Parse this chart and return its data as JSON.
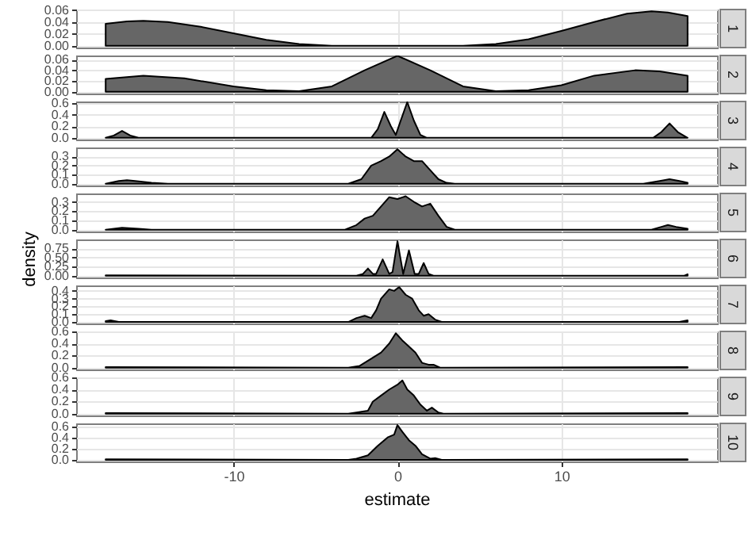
{
  "chart_data": [
    {
      "type": "area",
      "title": "1",
      "x": [
        -17.8,
        -16.5,
        -15.5,
        -14,
        -12,
        -10,
        -8,
        -6,
        -4,
        -2,
        0,
        2,
        4,
        6,
        8,
        10,
        12,
        14,
        15.5,
        16.5,
        17.7
      ],
      "series": [
        {
          "color": "#666666",
          "values": [
            0.037,
            0.041,
            0.042,
            0.04,
            0.032,
            0.021,
            0.01,
            0.003,
            0,
            0,
            0,
            0,
            0,
            0.003,
            0.011,
            0.025,
            0.04,
            0.054,
            0.058,
            0.056,
            0.05
          ]
        }
      ],
      "xlim": [
        -19.6,
        19.5
      ],
      "xticks": [
        -10,
        0,
        10
      ],
      "ylim": [
        -0.0029,
        0.0609
      ],
      "yticks": [
        {
          "value": 0,
          "label": "0.00"
        },
        {
          "value": 0.02,
          "label": "0.02"
        },
        {
          "value": 0.04,
          "label": "0.04"
        },
        {
          "value": 0.06,
          "label": "0.06"
        }
      ],
      "grid": true,
      "tick_labels": "y"
    },
    {
      "type": "area",
      "title": "2",
      "x": [
        -17.8,
        -15.5,
        -13,
        -10,
        -8,
        -6,
        -4,
        -2,
        0,
        2,
        4,
        6,
        8,
        10,
        12,
        14.5,
        16,
        17.7
      ],
      "series": [
        {
          "color": "#666666",
          "values": [
            0.024,
            0.03,
            0.025,
            0.01,
            0.003,
            0.001,
            0.01,
            0.04,
            0.067,
            0.04,
            0.01,
            0.001,
            0.003,
            0.012,
            0.03,
            0.04,
            0.038,
            0.03
          ]
        }
      ],
      "xlim": [
        -19.6,
        19.5
      ],
      "xticks": [
        -10,
        0,
        10
      ],
      "ylim": [
        -0.0034,
        0.0675
      ],
      "yticks": [
        {
          "value": 0,
          "label": "0.00"
        },
        {
          "value": 0.02,
          "label": "0.02"
        },
        {
          "value": 0.04,
          "label": "0.04"
        },
        {
          "value": 0.06,
          "label": "0.06"
        }
      ],
      "grid": true,
      "tick_labels": "y"
    },
    {
      "type": "area",
      "title": "3",
      "x": [
        -17.8,
        -17.3,
        -16.8,
        -16.3,
        -15.8,
        -1.6,
        -1.2,
        -0.8,
        -0.4,
        -0.1,
        0.2,
        0.6,
        1,
        1.4,
        1.8,
        15.6,
        16.1,
        16.6,
        17.1,
        17.7
      ],
      "series": [
        {
          "color": "#666666",
          "values": [
            0,
            0.04,
            0.12,
            0.04,
            0,
            0,
            0.15,
            0.45,
            0.2,
            0.05,
            0.3,
            0.62,
            0.3,
            0.05,
            0,
            0,
            0.1,
            0.25,
            0.1,
            0
          ]
        }
      ],
      "xlim": [
        -19.6,
        19.5
      ],
      "xticks": [
        -10,
        0,
        10
      ],
      "ylim": [
        -0.03,
        0.63
      ],
      "yticks": [
        {
          "value": 0,
          "label": "0.0"
        },
        {
          "value": 0.2,
          "label": "0.2"
        },
        {
          "value": 0.4,
          "label": "0.4"
        },
        {
          "value": 0.6,
          "label": "0.6"
        }
      ],
      "grid": true,
      "tick_labels": "y"
    },
    {
      "type": "area",
      "title": "4",
      "x": [
        -17.8,
        -17,
        -16.5,
        -16,
        -15,
        -14,
        -3,
        -2.2,
        -1.6,
        -1,
        -0.5,
        0,
        0.5,
        1,
        1.5,
        2,
        2.5,
        3,
        3.5,
        15,
        16,
        16.6,
        17.2,
        17.7
      ],
      "series": [
        {
          "color": "#666666",
          "values": [
            0,
            0.03,
            0.04,
            0.03,
            0.01,
            0,
            0,
            0.05,
            0.2,
            0.25,
            0.3,
            0.38,
            0.3,
            0.25,
            0.25,
            0.15,
            0.05,
            0.01,
            0,
            0,
            0.03,
            0.05,
            0.03,
            0.01
          ]
        }
      ],
      "xlim": [
        -19.6,
        19.5
      ],
      "xticks": [
        -10,
        0,
        10
      ],
      "ylim": [
        -0.02,
        0.4
      ],
      "yticks": [
        {
          "value": 0,
          "label": "0.0"
        },
        {
          "value": 0.1,
          "label": "0.1"
        },
        {
          "value": 0.2,
          "label": "0.2"
        },
        {
          "value": 0.3,
          "label": "0.3"
        }
      ],
      "grid": true,
      "tick_labels": "y"
    },
    {
      "type": "area",
      "title": "5",
      "x": [
        -17.8,
        -16.8,
        -15.8,
        -15,
        -3.2,
        -2.5,
        -2,
        -1.5,
        -1,
        -0.5,
        0,
        0.5,
        1,
        1.5,
        2,
        2.5,
        3,
        3.5,
        15.5,
        16.1,
        16.5,
        17,
        17.7
      ],
      "series": [
        {
          "color": "#666666",
          "values": [
            0,
            0.02,
            0.01,
            0,
            0,
            0.05,
            0.12,
            0.15,
            0.25,
            0.35,
            0.33,
            0.36,
            0.3,
            0.25,
            0.28,
            0.15,
            0.03,
            0,
            0,
            0.03,
            0.05,
            0.03,
            0.01
          ]
        }
      ],
      "xlim": [
        -19.6,
        19.5
      ],
      "xticks": [
        -10,
        0,
        10
      ],
      "ylim": [
        -0.02,
        0.39
      ],
      "yticks": [
        {
          "value": 0,
          "label": "0.0"
        },
        {
          "value": 0.1,
          "label": "0.1"
        },
        {
          "value": 0.2,
          "label": "0.2"
        },
        {
          "value": 0.3,
          "label": "0.3"
        }
      ],
      "grid": true,
      "tick_labels": "y"
    },
    {
      "type": "area",
      "title": "6",
      "ylabel": "density",
      "x": [
        -17.8,
        -2.5,
        -2.1,
        -1.8,
        -1.5,
        -1.3,
        -0.9,
        -0.5,
        -0.3,
        0,
        0.35,
        0.7,
        1.05,
        1.3,
        1.6,
        1.9,
        2.2,
        17.5,
        17.7
      ],
      "series": [
        {
          "color": "#666666",
          "values": [
            0.01,
            0,
            0.05,
            0.2,
            0.05,
            0.05,
            0.45,
            0.05,
            0.1,
            0.95,
            0.05,
            0.7,
            0.05,
            0.05,
            0.35,
            0.05,
            0,
            0,
            0.04
          ]
        }
      ],
      "xlim": [
        -19.6,
        19.5
      ],
      "xticks": [
        -10,
        0,
        10
      ],
      "ylim": [
        -0.05,
        1
      ],
      "yticks": [
        {
          "value": 0,
          "label": "0.00"
        },
        {
          "value": 0.25,
          "label": "0.25"
        },
        {
          "value": 0.5,
          "label": "0.50"
        },
        {
          "value": 0.75,
          "label": "0.75"
        }
      ],
      "grid": true,
      "tick_labels": "y"
    },
    {
      "type": "area",
      "title": "7",
      "x": [
        -17.8,
        -17.5,
        -17,
        -3,
        -2.5,
        -2,
        -1.6,
        -1.3,
        -1,
        -0.5,
        -0.2,
        0.1,
        0.5,
        0.9,
        1.3,
        1.6,
        1.9,
        2.3,
        2.7,
        17.2,
        17.7
      ],
      "series": [
        {
          "color": "#666666",
          "values": [
            0.01,
            0.02,
            0,
            0,
            0.05,
            0.08,
            0.05,
            0.15,
            0.3,
            0.42,
            0.4,
            0.45,
            0.35,
            0.3,
            0.15,
            0.08,
            0.1,
            0.03,
            0,
            0,
            0.02
          ]
        }
      ],
      "xlim": [
        -19.6,
        19.5
      ],
      "xticks": [
        -10,
        0,
        10
      ],
      "ylim": [
        -0.02,
        0.47
      ],
      "yticks": [
        {
          "value": 0,
          "label": "0.0"
        },
        {
          "value": 0.1,
          "label": "0.1"
        },
        {
          "value": 0.2,
          "label": "0.2"
        },
        {
          "value": 0.3,
          "label": "0.3"
        },
        {
          "value": 0.4,
          "label": "0.4"
        }
      ],
      "grid": true,
      "tick_labels": "y"
    },
    {
      "type": "area",
      "title": "8",
      "x": [
        -17.8,
        -3,
        -2.3,
        -1.6,
        -1,
        -0.5,
        -0.1,
        0.3,
        0.7,
        1.1,
        1.5,
        1.9,
        2.2,
        2.6,
        17.7
      ],
      "series": [
        {
          "color": "#666666",
          "values": [
            0.01,
            0,
            0.03,
            0.15,
            0.25,
            0.4,
            0.57,
            0.45,
            0.35,
            0.25,
            0.08,
            0.05,
            0.05,
            0,
            0.01
          ]
        }
      ],
      "xlim": [
        -19.6,
        19.5
      ],
      "xticks": [
        -10,
        0,
        10
      ],
      "ylim": [
        -0.03,
        0.6
      ],
      "yticks": [
        {
          "value": 0,
          "label": "0.0"
        },
        {
          "value": 0.2,
          "label": "0.2"
        },
        {
          "value": 0.4,
          "label": "0.4"
        },
        {
          "value": 0.6,
          "label": "0.6"
        }
      ],
      "grid": true,
      "tick_labels": "y"
    },
    {
      "type": "area",
      "title": "9",
      "x": [
        -17.8,
        -3,
        -2.5,
        -1.8,
        -1.5,
        -1,
        -0.5,
        0,
        0.3,
        0.6,
        1,
        1.4,
        1.8,
        2.1,
        2.5,
        2.8,
        17.7
      ],
      "series": [
        {
          "color": "#666666",
          "values": [
            0.01,
            0,
            0.02,
            0.05,
            0.2,
            0.3,
            0.4,
            0.48,
            0.55,
            0.4,
            0.3,
            0.15,
            0.05,
            0.1,
            0.02,
            0,
            0.01
          ]
        }
      ],
      "xlim": [
        -19.6,
        19.5
      ],
      "xticks": [
        -10,
        0,
        10
      ],
      "ylim": [
        -0.03,
        0.6
      ],
      "yticks": [
        {
          "value": 0,
          "label": "0.0"
        },
        {
          "value": 0.2,
          "label": "0.2"
        },
        {
          "value": 0.4,
          "label": "0.4"
        },
        {
          "value": 0.6,
          "label": "0.6"
        }
      ],
      "grid": true,
      "tick_labels": "y"
    },
    {
      "type": "area",
      "title": "10",
      "xlabel": "estimate",
      "x": [
        -17.8,
        -3,
        -2.5,
        -1.8,
        -1.2,
        -0.6,
        -0.2,
        0,
        0.3,
        0.7,
        1.1,
        1.5,
        2,
        2.3,
        2.7,
        17.7
      ],
      "series": [
        {
          "color": "#666666",
          "values": [
            0.01,
            0,
            0.02,
            0.08,
            0.25,
            0.4,
            0.45,
            0.62,
            0.5,
            0.35,
            0.25,
            0.1,
            0.02,
            0.03,
            0,
            0.01
          ]
        }
      ],
      "xlim": [
        -19.6,
        19.5
      ],
      "xticks": [
        -10,
        0,
        10
      ],
      "ylim": [
        -0.03,
        0.65
      ],
      "yticks": [
        {
          "value": 0,
          "label": "0.0"
        },
        {
          "value": 0.2,
          "label": "0.2"
        },
        {
          "value": 0.4,
          "label": "0.4"
        },
        {
          "value": 0.6,
          "label": "0.6"
        }
      ],
      "grid": true
    }
  ]
}
